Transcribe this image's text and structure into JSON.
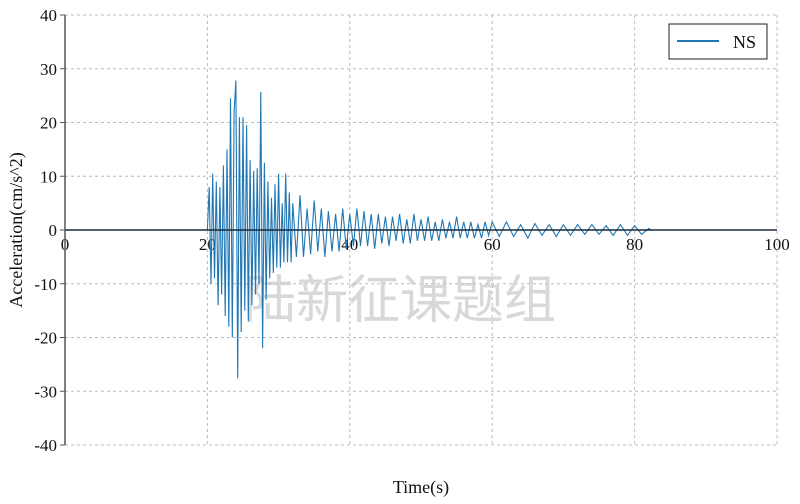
{
  "chart_data": {
    "type": "line",
    "title": "",
    "xlabel": "Time(s)",
    "ylabel": "Acceleration(cm/s^2)",
    "xlim": [
      0,
      100
    ],
    "ylim": [
      -40,
      40
    ],
    "xticks": [
      0,
      20,
      40,
      60,
      80,
      100
    ],
    "yticks": [
      40,
      30,
      20,
      10,
      0,
      -10,
      -20,
      -30,
      -40
    ],
    "grid": true,
    "legend_position": "top-right",
    "series": [
      {
        "name": "NS",
        "color": "#1f77b4",
        "points": [
          [
            0,
            0
          ],
          [
            20,
            0
          ],
          [
            20.25,
            8
          ],
          [
            20.5,
            -10
          ],
          [
            20.75,
            10.5
          ],
          [
            21,
            -9
          ],
          [
            21.25,
            9
          ],
          [
            21.5,
            -14
          ],
          [
            21.75,
            8
          ],
          [
            22,
            -12
          ],
          [
            22.25,
            12
          ],
          [
            22.5,
            -16
          ],
          [
            22.75,
            15
          ],
          [
            23,
            -18
          ],
          [
            23.25,
            24.5
          ],
          [
            23.5,
            -20
          ],
          [
            23.75,
            22
          ],
          [
            24,
            27.8
          ],
          [
            24.25,
            -27.6
          ],
          [
            24.5,
            21
          ],
          [
            24.75,
            -19
          ],
          [
            25,
            21
          ],
          [
            25.25,
            -15
          ],
          [
            25.5,
            19.5
          ],
          [
            25.75,
            -17
          ],
          [
            26,
            13
          ],
          [
            26.25,
            -14
          ],
          [
            26.5,
            11
          ],
          [
            26.75,
            -12
          ],
          [
            27,
            11.5
          ],
          [
            27.25,
            -10
          ],
          [
            27.5,
            25.7
          ],
          [
            27.75,
            -22
          ],
          [
            28,
            12.5
          ],
          [
            28.25,
            -13
          ],
          [
            28.5,
            9
          ],
          [
            28.75,
            -9
          ],
          [
            29,
            6
          ],
          [
            29.25,
            -8
          ],
          [
            29.5,
            8.5
          ],
          [
            29.75,
            -7
          ],
          [
            30,
            10.5
          ],
          [
            30.25,
            -7
          ],
          [
            30.5,
            5
          ],
          [
            30.75,
            -6
          ],
          [
            31,
            10.5
          ],
          [
            31.25,
            -6
          ],
          [
            31.5,
            7
          ],
          [
            31.75,
            -6
          ],
          [
            32,
            5
          ],
          [
            32.5,
            -5
          ],
          [
            33,
            6.5
          ],
          [
            33.5,
            -5
          ],
          [
            34,
            4
          ],
          [
            34.5,
            -4.5
          ],
          [
            35,
            5.5
          ],
          [
            35.5,
            -4
          ],
          [
            36,
            4
          ],
          [
            36.5,
            -5
          ],
          [
            37,
            3.5
          ],
          [
            37.5,
            -4
          ],
          [
            38,
            3
          ],
          [
            38.5,
            -4
          ],
          [
            39,
            4
          ],
          [
            39.5,
            -3.5
          ],
          [
            40,
            3
          ],
          [
            40.5,
            -3
          ],
          [
            41,
            4
          ],
          [
            41.5,
            -3
          ],
          [
            42,
            3.5
          ],
          [
            42.5,
            -3
          ],
          [
            43,
            3
          ],
          [
            43.5,
            -3.5
          ],
          [
            44,
            3
          ],
          [
            44.5,
            -2.5
          ],
          [
            45,
            2.5
          ],
          [
            45.5,
            -3
          ],
          [
            46,
            2.5
          ],
          [
            46.5,
            -2
          ],
          [
            47,
            3
          ],
          [
            47.5,
            -2.5
          ],
          [
            48,
            2
          ],
          [
            48.5,
            -2.5
          ],
          [
            49,
            3
          ],
          [
            49.5,
            -2
          ],
          [
            50,
            2
          ],
          [
            50.5,
            -2
          ],
          [
            51,
            2.5
          ],
          [
            51.5,
            -2
          ],
          [
            52,
            1.5
          ],
          [
            52.5,
            -2
          ],
          [
            53,
            2
          ],
          [
            53.5,
            -1.5
          ],
          [
            54,
            1.5
          ],
          [
            54.5,
            -1.5
          ],
          [
            55,
            2.5
          ],
          [
            55.5,
            -1.5
          ],
          [
            56,
            1.5
          ],
          [
            56.5,
            -1.5
          ],
          [
            57,
            1.5
          ],
          [
            57.5,
            -1.5
          ],
          [
            58,
            1
          ],
          [
            58.5,
            -1.5
          ],
          [
            59,
            1.5
          ],
          [
            59.5,
            -1
          ],
          [
            60,
            1.5
          ],
          [
            61,
            -1.2
          ],
          [
            62,
            1.5
          ],
          [
            63,
            -1.2
          ],
          [
            64,
            1
          ],
          [
            65,
            -1.5
          ],
          [
            66,
            1.2
          ],
          [
            67,
            -1
          ],
          [
            68,
            1
          ],
          [
            69,
            -1.2
          ],
          [
            70,
            1
          ],
          [
            71,
            -1
          ],
          [
            72,
            1
          ],
          [
            73,
            -0.8
          ],
          [
            74,
            1
          ],
          [
            75,
            -0.8
          ],
          [
            76,
            0.8
          ],
          [
            77,
            -1
          ],
          [
            78,
            1
          ],
          [
            79,
            -1
          ],
          [
            80,
            0.8
          ],
          [
            81,
            -0.8
          ],
          [
            82,
            0.3
          ],
          [
            82.3,
            0
          ]
        ]
      }
    ],
    "watermark": "陆新征课题组"
  }
}
